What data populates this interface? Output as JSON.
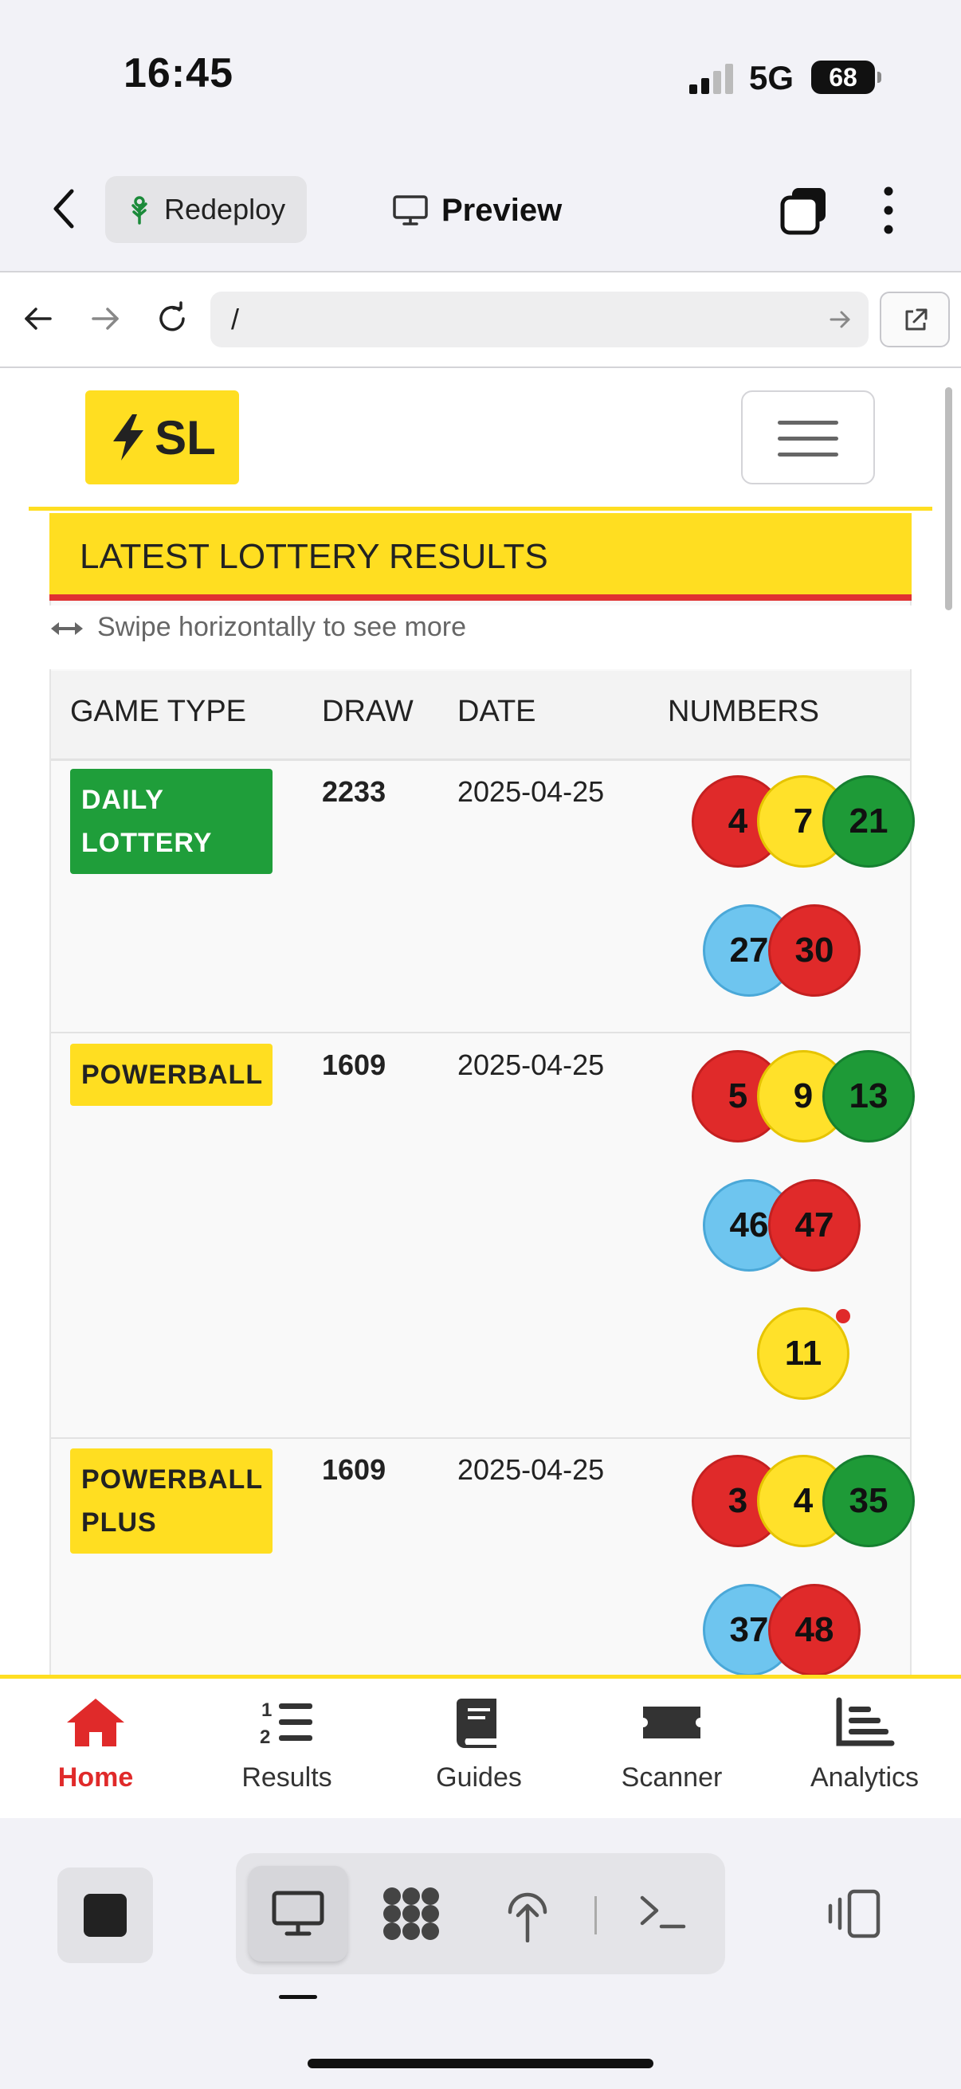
{
  "status": {
    "time": "16:45",
    "network": "5G",
    "battery": "68"
  },
  "topbar": {
    "redeploy_label": "Redeploy",
    "preview_label": "Preview"
  },
  "browser": {
    "url": "/"
  },
  "site": {
    "logo_text": "SL",
    "section_title": "LATEST LOTTERY RESULTS",
    "swipe_hint": "Swipe horizontally to see more",
    "columns": [
      "GAME TYPE",
      "DRAW",
      "DATE",
      "NUMBERS"
    ],
    "rows": [
      {
        "game": "DAILY LOTTERY",
        "game_color": "#1f9e3a",
        "draw": "2233",
        "date": "2025-04-25",
        "numbers": [
          "4",
          "7",
          "21",
          "27",
          "30"
        ],
        "bonus": ""
      },
      {
        "game": "POWERBALL",
        "game_color": "#ffde21",
        "draw": "1609",
        "date": "2025-04-25",
        "numbers": [
          "5",
          "9",
          "13",
          "46",
          "47"
        ],
        "bonus": "11"
      },
      {
        "game": "POWERBALL PLUS",
        "game_color": "#ffde21",
        "draw": "1609",
        "date": "2025-04-25",
        "numbers": [
          "3",
          "4",
          "35",
          "37",
          "48"
        ],
        "bonus": ""
      }
    ]
  },
  "bottom_nav": [
    {
      "label": "Home",
      "icon": "home-icon",
      "active": true
    },
    {
      "label": "Results",
      "icon": "list-ordered-icon",
      "active": false
    },
    {
      "label": "Guides",
      "icon": "book-icon",
      "active": false
    },
    {
      "label": "Scanner",
      "icon": "ticket-icon",
      "active": false
    },
    {
      "label": "Analytics",
      "icon": "chart-icon",
      "active": false
    }
  ],
  "colors": {
    "brand_yellow": "#ffde21",
    "accent_red": "#e02a2a",
    "ball_green": "#1e9a37",
    "ball_blue": "#6ec5ef"
  }
}
